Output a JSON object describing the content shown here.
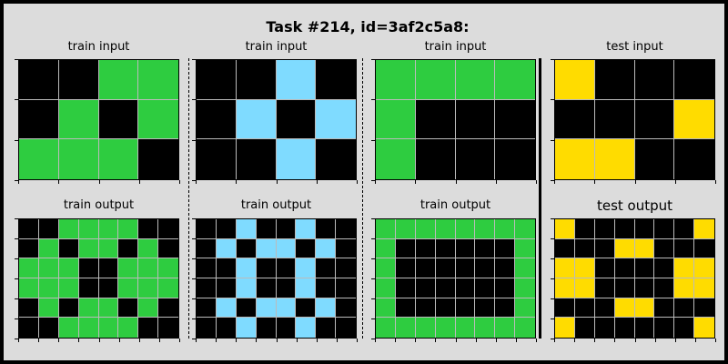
{
  "title": "Task #214, id=3af2c5a8:",
  "colors": {
    "0": "#000000",
    "3": "#2ecc40",
    "4": "#ffdc00",
    "8": "#7fdbff"
  },
  "panels": [
    {
      "label": "train input",
      "grid": [
        [
          0,
          0,
          3,
          3
        ],
        [
          0,
          3,
          0,
          3
        ],
        [
          3,
          3,
          3,
          0
        ]
      ]
    },
    {
      "label": "train input",
      "grid": [
        [
          0,
          0,
          8,
          0
        ],
        [
          0,
          8,
          0,
          8
        ],
        [
          0,
          0,
          8,
          0
        ]
      ]
    },
    {
      "label": "train input",
      "grid": [
        [
          3,
          3,
          3,
          3
        ],
        [
          3,
          0,
          0,
          0
        ],
        [
          3,
          0,
          0,
          0
        ]
      ]
    },
    {
      "label": "test input",
      "grid": [
        [
          4,
          0,
          0,
          0
        ],
        [
          0,
          0,
          0,
          4
        ],
        [
          4,
          4,
          0,
          0
        ]
      ]
    },
    {
      "label": "train output",
      "grid": [
        [
          0,
          0,
          3,
          3,
          3,
          3,
          0,
          0
        ],
        [
          0,
          3,
          0,
          3,
          3,
          0,
          3,
          0
        ],
        [
          3,
          3,
          3,
          0,
          0,
          3,
          3,
          3
        ],
        [
          3,
          3,
          3,
          0,
          0,
          3,
          3,
          3
        ],
        [
          0,
          3,
          0,
          3,
          3,
          0,
          3,
          0
        ],
        [
          0,
          0,
          3,
          3,
          3,
          3,
          0,
          0
        ]
      ]
    },
    {
      "label": "train output",
      "grid": [
        [
          0,
          0,
          8,
          0,
          0,
          8,
          0,
          0
        ],
        [
          0,
          8,
          0,
          8,
          8,
          0,
          8,
          0
        ],
        [
          0,
          0,
          8,
          0,
          0,
          8,
          0,
          0
        ],
        [
          0,
          0,
          8,
          0,
          0,
          8,
          0,
          0
        ],
        [
          0,
          8,
          0,
          8,
          8,
          0,
          8,
          0
        ],
        [
          0,
          0,
          8,
          0,
          0,
          8,
          0,
          0
        ]
      ]
    },
    {
      "label": "train output",
      "grid": [
        [
          3,
          3,
          3,
          3,
          3,
          3,
          3,
          3
        ],
        [
          3,
          0,
          0,
          0,
          0,
          0,
          0,
          3
        ],
        [
          3,
          0,
          0,
          0,
          0,
          0,
          0,
          3
        ],
        [
          3,
          0,
          0,
          0,
          0,
          0,
          0,
          3
        ],
        [
          3,
          0,
          0,
          0,
          0,
          0,
          0,
          3
        ],
        [
          3,
          3,
          3,
          3,
          3,
          3,
          3,
          3
        ]
      ]
    },
    {
      "label": "test output",
      "grid": [
        [
          4,
          0,
          0,
          0,
          0,
          0,
          0,
          4
        ],
        [
          0,
          0,
          0,
          4,
          4,
          0,
          0,
          0
        ],
        [
          4,
          4,
          0,
          0,
          0,
          0,
          4,
          4
        ],
        [
          4,
          4,
          0,
          0,
          0,
          0,
          4,
          4
        ],
        [
          0,
          0,
          0,
          4,
          4,
          0,
          0,
          0
        ],
        [
          4,
          0,
          0,
          0,
          0,
          0,
          0,
          4
        ]
      ]
    }
  ]
}
